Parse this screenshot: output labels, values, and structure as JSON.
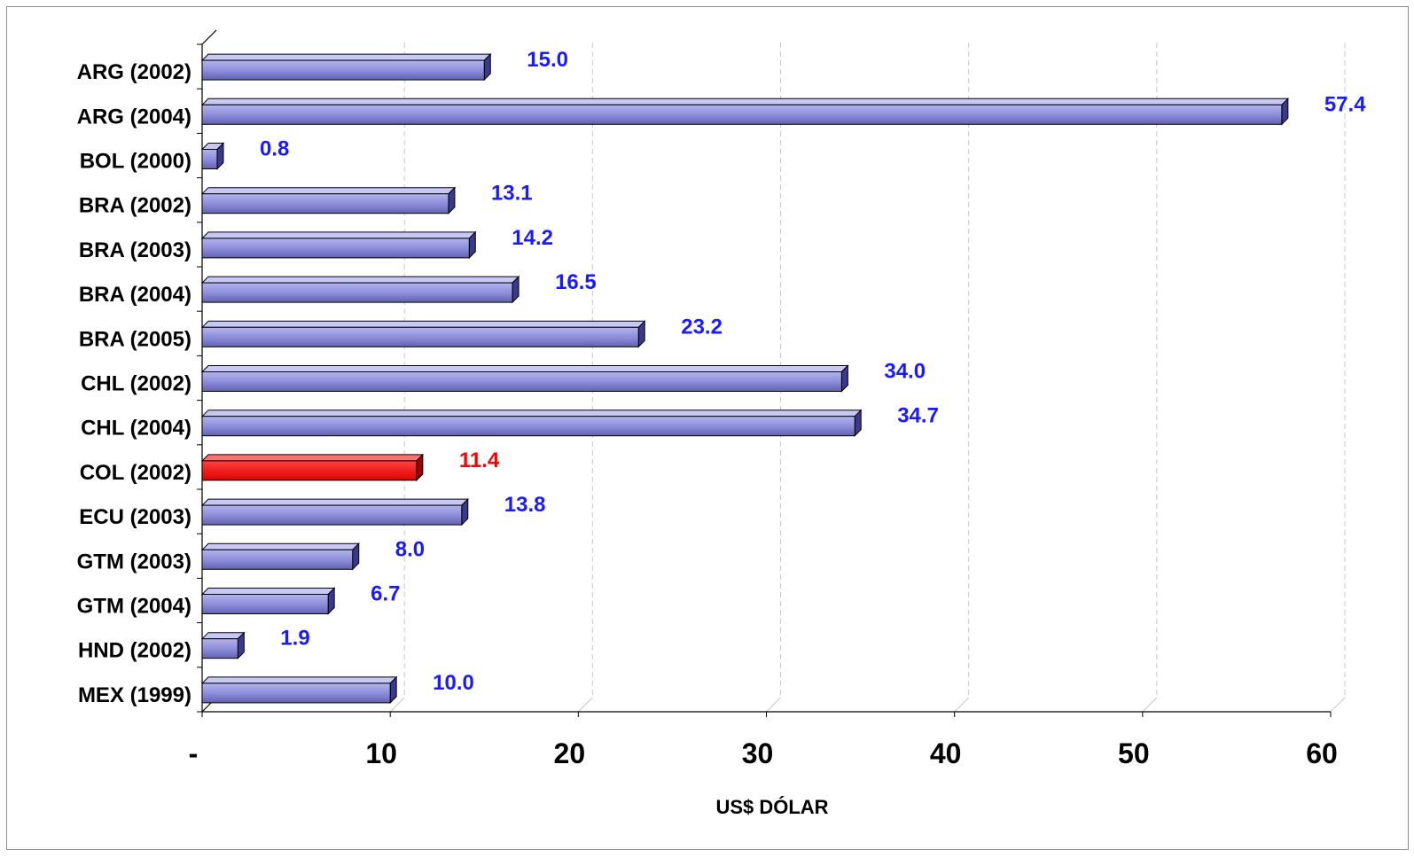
{
  "chart_data": {
    "type": "bar",
    "orientation": "horizontal",
    "categories": [
      "ARG (2002)",
      "ARG (2004)",
      "BOL (2000)",
      "BRA (2002)",
      "BRA (2003)",
      "BRA (2004)",
      "BRA (2005)",
      "CHL (2002)",
      "CHL (2004)",
      "COL (2002)",
      "ECU (2003)",
      "GTM (2003)",
      "GTM (2004)",
      "HND (2002)",
      "MEX (1999)"
    ],
    "values": [
      15.0,
      57.4,
      0.8,
      13.1,
      14.2,
      16.5,
      23.2,
      34.0,
      34.7,
      11.4,
      13.8,
      8.0,
      6.7,
      1.9,
      10.0
    ],
    "value_labels": [
      "15.0",
      "57.4",
      "0.8",
      "13.1",
      "14.2",
      "16.5",
      "23.2",
      "34.0",
      "34.7",
      "11.4",
      "13.8",
      "8.0",
      "6.7",
      "1.9",
      "10.0"
    ],
    "highlight_category": "COL (2002)",
    "xlabel": "US$ DÓLAR",
    "xlim": [
      0,
      60
    ],
    "xticks": [
      {
        "value": 0,
        "label": "-"
      },
      {
        "value": 10,
        "label": "10"
      },
      {
        "value": 20,
        "label": "20"
      },
      {
        "value": 30,
        "label": "30"
      },
      {
        "value": 40,
        "label": "40"
      },
      {
        "value": 50,
        "label": "50"
      },
      {
        "value": 60,
        "label": "60"
      }
    ],
    "grid": "vertical dashed",
    "legend": "none",
    "colors": {
      "bar": "#8c8cd8",
      "bar_dark": "#3a3a8c",
      "highlight_bar": "#ff0000",
      "highlight_bar_dark": "#a00000",
      "value_label": "#1a1aff",
      "highlight_value_label": "#ff0000",
      "axis_text": "#000000"
    }
  }
}
